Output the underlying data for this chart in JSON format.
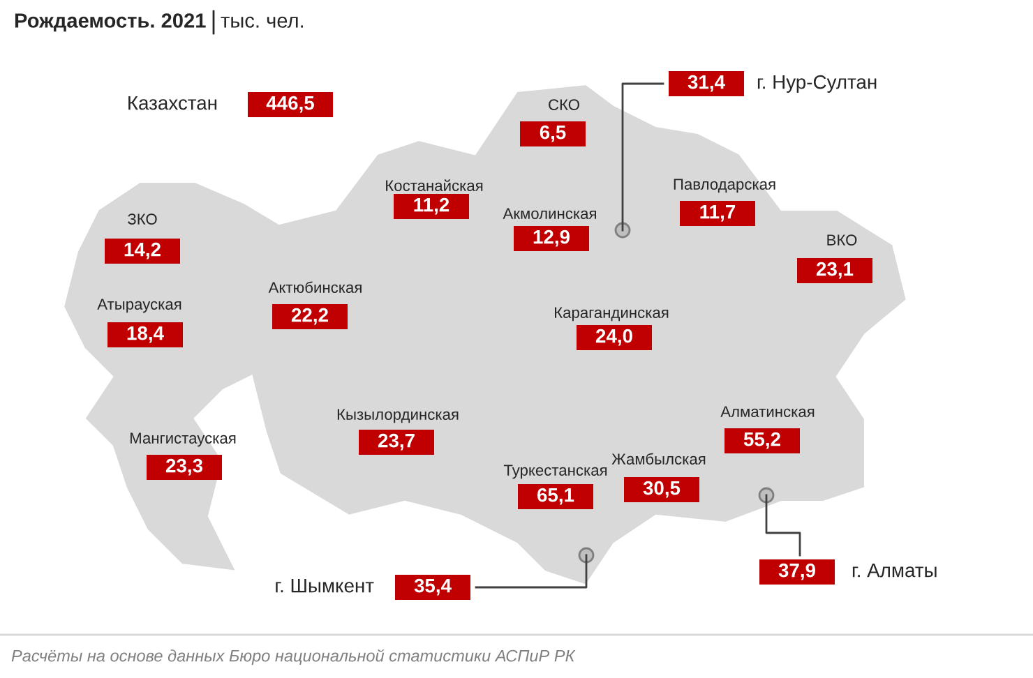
{
  "chart_data": {
    "type": "other",
    "title": "Рождаемость. 2021",
    "subtitle": "тыс. чел.",
    "color": "#c00000",
    "categories": [
      "Казахстан",
      "СКО",
      "г. Нур-Султан",
      "Костанайская",
      "Павлодарская",
      "Акмолинская",
      "ЗКО",
      "ВКО",
      "Атырауская",
      "Актюбинская",
      "Карагандинская",
      "Кызылординская",
      "Мангистауская",
      "Алматинская",
      "Туркестанская",
      "Жамбылская",
      "г. Шымкент",
      "г. Алматы"
    ],
    "values": [
      446.5,
      6.5,
      31.4,
      11.2,
      11.7,
      12.9,
      14.2,
      23.1,
      18.4,
      22.2,
      24.0,
      23.7,
      23.3,
      55.2,
      65.1,
      30.5,
      35.4,
      37.9
    ],
    "value_labels": [
      "446,5",
      "6,5",
      "31,4",
      "11,2",
      "11,7",
      "12,9",
      "14,2",
      "23,1",
      "18,4",
      "22,2",
      "24,0",
      "23,7",
      "23,3",
      "55,2",
      "65,1",
      "30,5",
      "35,4",
      "37,9"
    ],
    "annotations": [
      "Расчёты на основе данных Бюро национальной статистики АСПиР РК"
    ]
  }
}
